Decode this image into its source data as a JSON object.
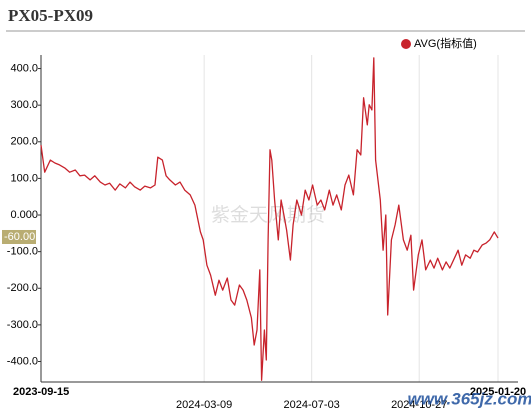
{
  "chart_data": {
    "type": "line",
    "title": "PX05-PX09",
    "x": [
      "2023-09-15",
      "2023-09-19",
      "2023-09-25",
      "2023-09-30",
      "2023-10-05",
      "2023-10-11",
      "2023-10-16",
      "2023-10-22",
      "2023-10-27",
      "2023-11-01",
      "2023-11-07",
      "2023-11-12",
      "2023-11-18",
      "2023-11-23",
      "2023-11-28",
      "2023-12-04",
      "2023-12-09",
      "2023-12-15",
      "2023-12-20",
      "2023-12-25",
      "2023-12-31",
      "2024-01-05",
      "2024-01-11",
      "2024-01-16",
      "2024-01-19",
      "2024-01-24",
      "2024-01-28",
      "2024-02-01",
      "2024-02-07",
      "2024-02-12",
      "2024-02-17",
      "2024-02-23",
      "2024-02-28",
      "2024-03-05",
      "2024-03-08",
      "2024-03-12",
      "2024-03-16",
      "2024-03-21",
      "2024-03-25",
      "2024-03-29",
      "2024-04-03",
      "2024-04-07",
      "2024-04-11",
      "2024-04-16",
      "2024-04-20",
      "2024-04-24",
      "2024-04-29",
      "2024-05-02",
      "2024-05-05",
      "2024-05-08",
      "2024-05-10",
      "2024-05-13",
      "2024-05-15",
      "2024-05-17",
      "2024-05-19",
      "2024-05-21",
      "2024-05-24",
      "2024-05-28",
      "2024-05-31",
      "2024-06-03",
      "2024-06-06",
      "2024-06-10",
      "2024-06-13",
      "2024-06-17",
      "2024-06-22",
      "2024-06-26",
      "2024-06-30",
      "2024-07-04",
      "2024-07-09",
      "2024-07-13",
      "2024-07-17",
      "2024-07-22",
      "2024-07-26",
      "2024-07-30",
      "2024-08-04",
      "2024-08-08",
      "2024-08-12",
      "2024-08-17",
      "2024-08-21",
      "2024-08-25",
      "2024-08-28",
      "2024-09-01",
      "2024-09-03",
      "2024-09-06",
      "2024-09-08",
      "2024-09-10",
      "2024-09-15",
      "2024-09-18",
      "2024-09-21",
      "2024-09-23",
      "2024-09-27",
      "2024-10-01",
      "2024-10-05",
      "2024-10-10",
      "2024-10-14",
      "2024-10-18",
      "2024-10-21",
      "2024-10-26",
      "2024-10-30",
      "2024-11-03",
      "2024-11-08",
      "2024-11-12",
      "2024-11-16",
      "2024-11-21",
      "2024-11-25",
      "2024-11-29",
      "2024-12-04",
      "2024-12-08",
      "2024-12-12",
      "2024-12-16",
      "2024-12-21",
      "2024-12-25",
      "2024-12-29",
      "2025-01-03",
      "2025-01-07",
      "2025-01-11",
      "2025-01-16",
      "2025-01-20"
    ],
    "series": [
      {
        "name": "AVG(指标值)",
        "color": "#c8232c",
        "values": [
          191,
          117,
          150,
          142,
          137,
          128,
          117,
          123,
          107,
          109,
          96,
          107,
          90,
          82,
          87,
          68,
          85,
          74,
          90,
          77,
          68,
          79,
          74,
          82,
          158,
          150,
          107,
          96,
          82,
          90,
          68,
          55,
          27,
          -46,
          -68,
          -137,
          -164,
          -219,
          -178,
          -205,
          -172,
          -232,
          -246,
          -191,
          -205,
          -232,
          -281,
          -355,
          -314,
          -150,
          -451,
          -314,
          -396,
          -68,
          178,
          150,
          41,
          -68,
          41,
          0,
          -41,
          -123,
          -27,
          41,
          0,
          68,
          41,
          82,
          27,
          41,
          14,
          68,
          27,
          55,
          14,
          82,
          109,
          55,
          178,
          164,
          320,
          246,
          301,
          287,
          429,
          150,
          41,
          -96,
          0,
          -273,
          -68,
          -27,
          27,
          -68,
          -96,
          -55,
          -205,
          -109,
          -68,
          -150,
          -123,
          -145,
          -118,
          -150,
          -128,
          -145,
          -118,
          -96,
          -137,
          -109,
          -118,
          -96,
          -101,
          -82,
          -77,
          -68,
          -46,
          -63
        ]
      }
    ],
    "xlim": [
      "2023-09-15",
      "2025-01-20"
    ],
    "xticks": [
      "2023-09-15",
      "2024-03-09",
      "2024-07-03",
      "2024-10-27",
      "2025-01-20"
    ],
    "ylim": [
      -456,
      437
    ],
    "yticks": [
      {
        "value": 400,
        "label": "400.0"
      },
      {
        "value": 300,
        "label": "300.0"
      },
      {
        "value": 200,
        "label": "200.0"
      },
      {
        "value": 100,
        "label": "100.0"
      },
      {
        "value": 0,
        "label": "0.000"
      },
      {
        "value": -100,
        "label": "-100.0"
      },
      {
        "value": -200,
        "label": "-200.0"
      },
      {
        "value": -300,
        "label": "-300.0"
      },
      {
        "value": -400,
        "label": "-400.0"
      }
    ],
    "cursor": {
      "value": -60,
      "label": "-60.00"
    },
    "watermark": "紫金天风期货",
    "site_watermark": "www.365jz.com",
    "grid": true,
    "legend": "top-right"
  }
}
